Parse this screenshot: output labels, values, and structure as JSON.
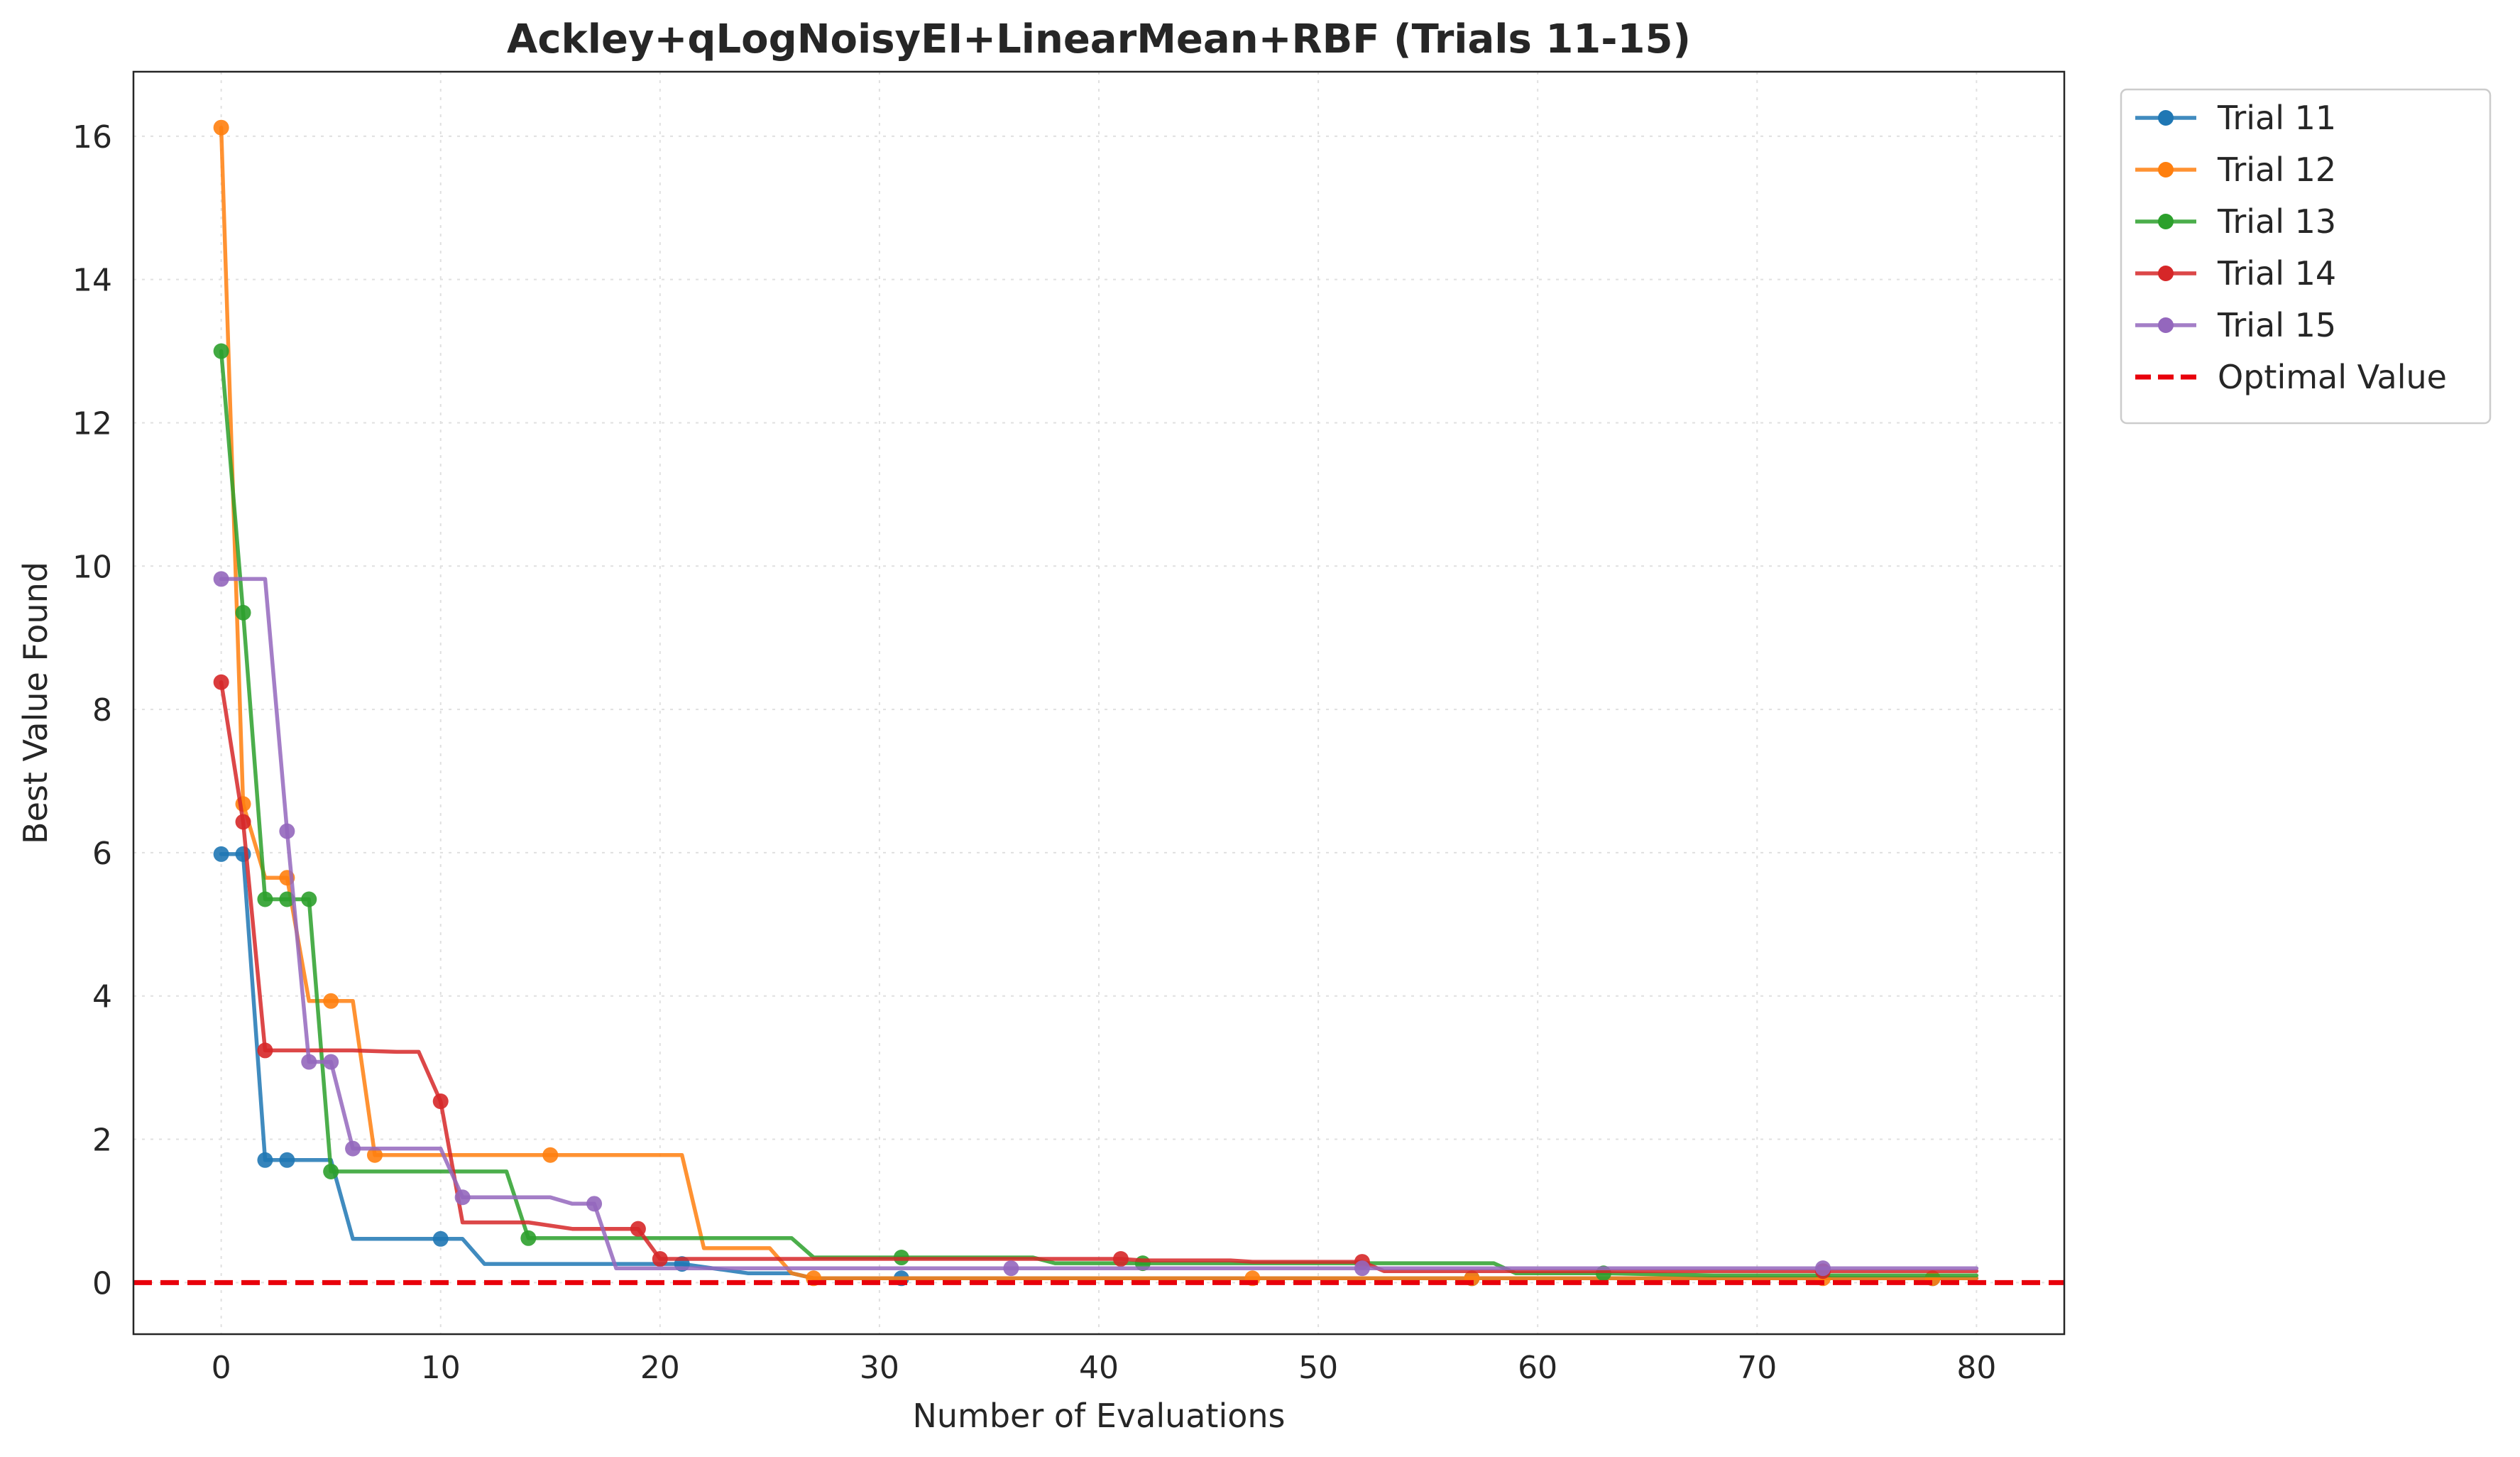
{
  "chart_data": {
    "type": "line",
    "title": "Ackley+qLogNoisyEI+LinearMean+RBF (Trials 11-15)",
    "xlabel": "Number of Evaluations",
    "ylabel": "Best Value Found",
    "xlim": [
      -4,
      84
    ],
    "ylim": [
      -0.72,
      16.9
    ],
    "xticks": [
      0,
      10,
      20,
      30,
      40,
      50,
      60,
      70,
      80
    ],
    "yticks": [
      0,
      2,
      4,
      6,
      8,
      10,
      12,
      14,
      16
    ],
    "grid": true,
    "legend_position": "outside-top-right",
    "series": [
      {
        "name": "Trial 11",
        "color": "#1f77b4",
        "points": [
          [
            0,
            5.98
          ],
          [
            1,
            5.98
          ],
          [
            2,
            1.71
          ],
          [
            3,
            1.71
          ],
          [
            5,
            1.71
          ],
          [
            6,
            0.61
          ],
          [
            10,
            0.61
          ],
          [
            11,
            0.61
          ],
          [
            12,
            0.26
          ],
          [
            15,
            0.26
          ],
          [
            20,
            0.26
          ],
          [
            21,
            0.26
          ],
          [
            24,
            0.13
          ],
          [
            26,
            0.13
          ],
          [
            27,
            0.06
          ],
          [
            31,
            0.06
          ],
          [
            36,
            0.06
          ],
          [
            41,
            0.06
          ],
          [
            42,
            0.06
          ],
          [
            47,
            0.06
          ],
          [
            52,
            0.06
          ],
          [
            57,
            0.06
          ],
          [
            62,
            0.06
          ],
          [
            63,
            0.06
          ],
          [
            68,
            0.06
          ],
          [
            73,
            0.06
          ],
          [
            78,
            0.06
          ],
          [
            80,
            0.06
          ]
        ],
        "marker_indices": [
          0,
          1,
          2,
          3,
          6,
          11,
          15,
          21,
          26,
          31,
          36,
          41,
          42,
          47,
          52,
          57,
          62,
          63,
          68,
          73,
          78
        ]
      },
      {
        "name": "Trial 12",
        "color": "#ff7f0e",
        "points": [
          [
            0,
            16.12
          ],
          [
            1,
            6.68
          ],
          [
            2,
            5.65
          ],
          [
            3,
            5.65
          ],
          [
            4,
            3.93
          ],
          [
            5,
            3.93
          ],
          [
            6,
            3.93
          ],
          [
            7,
            1.78
          ],
          [
            9,
            1.78
          ],
          [
            15,
            1.78
          ],
          [
            20,
            1.78
          ],
          [
            21,
            1.78
          ],
          [
            22,
            0.48
          ],
          [
            25,
            0.48
          ],
          [
            26,
            0.13
          ],
          [
            27,
            0.06
          ],
          [
            31,
            0.06
          ],
          [
            36,
            0.06
          ],
          [
            41,
            0.06
          ],
          [
            42,
            0.06
          ],
          [
            47,
            0.06
          ],
          [
            52,
            0.06
          ],
          [
            57,
            0.06
          ],
          [
            62,
            0.06
          ],
          [
            63,
            0.06
          ],
          [
            68,
            0.06
          ],
          [
            73,
            0.06
          ],
          [
            78,
            0.06
          ],
          [
            80,
            0.06
          ]
        ],
        "marker_indices": [
          0,
          1,
          3,
          5,
          7,
          9,
          15,
          20,
          22,
          26,
          27,
          31,
          36,
          41,
          42,
          47,
          52,
          57,
          62,
          63,
          68,
          73,
          78
        ]
      },
      {
        "name": "Trial 13",
        "color": "#2ca02c",
        "points": [
          [
            0,
            13.0
          ],
          [
            1,
            9.35
          ],
          [
            2,
            5.35
          ],
          [
            3,
            5.35
          ],
          [
            4,
            5.35
          ],
          [
            5,
            1.55
          ],
          [
            8,
            1.55
          ],
          [
            13,
            1.55
          ],
          [
            14,
            0.62
          ],
          [
            16,
            0.62
          ],
          [
            21,
            0.62
          ],
          [
            26,
            0.62
          ],
          [
            27,
            0.35
          ],
          [
            31,
            0.35
          ],
          [
            37,
            0.35
          ],
          [
            38,
            0.27
          ],
          [
            42,
            0.27
          ],
          [
            47,
            0.27
          ],
          [
            52,
            0.27
          ],
          [
            58,
            0.27
          ],
          [
            59,
            0.13
          ],
          [
            63,
            0.13
          ],
          [
            68,
            0.1
          ],
          [
            73,
            0.1
          ],
          [
            78,
            0.1
          ],
          [
            80,
            0.1
          ]
        ],
        "marker_indices": [
          0,
          1,
          2,
          3,
          4,
          5,
          8,
          13,
          16,
          21,
          26,
          31,
          37,
          42,
          47,
          52,
          58,
          63,
          68,
          73,
          78
        ]
      },
      {
        "name": "Trial 14",
        "color": "#d62728",
        "points": [
          [
            0,
            8.38
          ],
          [
            1,
            6.43
          ],
          [
            2,
            3.24
          ],
          [
            6,
            3.24
          ],
          [
            8,
            3.22
          ],
          [
            9,
            3.22
          ],
          [
            10,
            2.53
          ],
          [
            11,
            0.84
          ],
          [
            14,
            0.84
          ],
          [
            16,
            0.75
          ],
          [
            19,
            0.75
          ],
          [
            20,
            0.33
          ],
          [
            21,
            0.33
          ],
          [
            26,
            0.33
          ],
          [
            31,
            0.33
          ],
          [
            36,
            0.33
          ],
          [
            41,
            0.33
          ],
          [
            42,
            0.31
          ],
          [
            46,
            0.31
          ],
          [
            47,
            0.29
          ],
          [
            52,
            0.29
          ],
          [
            53,
            0.16
          ],
          [
            57,
            0.16
          ],
          [
            62,
            0.16
          ],
          [
            63,
            0.16
          ],
          [
            68,
            0.16
          ],
          [
            73,
            0.16
          ],
          [
            78,
            0.16
          ],
          [
            80,
            0.16
          ]
        ],
        "marker_indices": [
          0,
          1,
          2,
          6,
          10,
          11,
          16,
          20,
          26,
          31,
          36,
          41,
          47,
          52,
          57,
          62,
          68,
          73,
          78
        ]
      },
      {
        "name": "Trial 15",
        "color": "#9467bd",
        "points": [
          [
            0,
            9.82
          ],
          [
            2,
            9.82
          ],
          [
            3,
            6.3
          ],
          [
            4,
            3.08
          ],
          [
            5,
            3.08
          ],
          [
            6,
            1.87
          ],
          [
            8,
            1.87
          ],
          [
            10,
            1.87
          ],
          [
            11,
            1.19
          ],
          [
            12,
            1.19
          ],
          [
            15,
            1.19
          ],
          [
            16,
            1.1
          ],
          [
            17,
            1.1
          ],
          [
            18,
            0.2
          ],
          [
            21,
            0.2
          ],
          [
            26,
            0.2
          ],
          [
            31,
            0.2
          ],
          [
            36,
            0.2
          ],
          [
            41,
            0.2
          ],
          [
            42,
            0.2
          ],
          [
            47,
            0.2
          ],
          [
            52,
            0.2
          ],
          [
            57,
            0.2
          ],
          [
            62,
            0.2
          ],
          [
            63,
            0.2
          ],
          [
            68,
            0.2
          ],
          [
            73,
            0.2
          ],
          [
            78,
            0.2
          ],
          [
            80,
            0.2
          ]
        ],
        "marker_indices": [
          0,
          2,
          3,
          4,
          5,
          8,
          12,
          17,
          21,
          26,
          31,
          36,
          42,
          47,
          52,
          57,
          63,
          68,
          73,
          78
        ]
      }
    ],
    "reference_line": {
      "name": "Optimal Value",
      "y": 0,
      "color": "#e8000b",
      "style": "dashed"
    }
  }
}
